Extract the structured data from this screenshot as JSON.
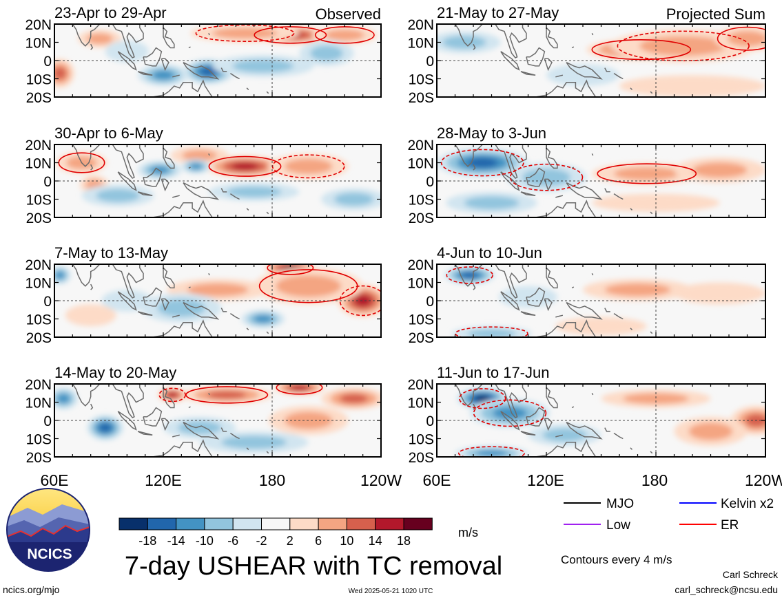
{
  "chart_data": {
    "type": "heatmap",
    "title": "7-day USHEAR with TC removal",
    "variable": "USHEAR",
    "units": "m/s",
    "colorbar": {
      "ticks": [
        "-18",
        "-14",
        "-10",
        "-6",
        "-2",
        "2",
        "6",
        "10",
        "14",
        "18"
      ],
      "colors": [
        "#08306b",
        "#2166ac",
        "#4393c3",
        "#92c5de",
        "#d1e5f0",
        "#f7f7f7",
        "#fddbc7",
        "#f4a582",
        "#d6604d",
        "#b2182b",
        "#67001f"
      ]
    },
    "lat_ticks": [
      "20N",
      "10N",
      "0",
      "10S",
      "20S"
    ],
    "lon_ticks": [
      "60E",
      "120E",
      "180",
      "120W"
    ],
    "panels": [
      {
        "title": "23-Apr to 29-Apr",
        "corner": "Observed",
        "column": "observed",
        "blobs": [
          {
            "lon": 190,
            "lat": 14,
            "rlon": 22,
            "rlat": 5,
            "v": 16
          },
          {
            "lon": 165,
            "lat": 15,
            "rlon": 30,
            "rlat": 5,
            "v": 8
          },
          {
            "lon": 220,
            "lat": 14,
            "rlon": 18,
            "rlat": 5,
            "v": 8
          },
          {
            "lon": 63,
            "lat": -7,
            "rlon": 8,
            "rlat": 8,
            "v": 12
          },
          {
            "lon": 85,
            "lat": 12,
            "rlon": 12,
            "rlat": 5,
            "v": 6
          },
          {
            "lon": 145,
            "lat": -6,
            "rlon": 14,
            "rlat": 7,
            "v": -14
          },
          {
            "lon": 120,
            "lat": -8,
            "rlon": 14,
            "rlat": 6,
            "v": -10
          },
          {
            "lon": 175,
            "lat": -3,
            "rlon": 28,
            "rlat": 6,
            "v": -8
          },
          {
            "lon": 210,
            "lat": 4,
            "rlon": 15,
            "rlat": 7,
            "v": -6
          },
          {
            "lon": 100,
            "lat": 5,
            "rlon": 12,
            "rlat": 6,
            "v": -4
          }
        ]
      },
      {
        "title": "30-Apr to 6-May",
        "corner": "",
        "column": "observed",
        "blobs": [
          {
            "lon": 165,
            "lat": 8,
            "rlon": 22,
            "rlat": 6,
            "v": 16
          },
          {
            "lon": 200,
            "lat": 8,
            "rlon": 22,
            "rlat": 7,
            "v": 8
          },
          {
            "lon": 75,
            "lat": 10,
            "rlon": 14,
            "rlat": 6,
            "v": 8
          },
          {
            "lon": 82,
            "lat": -2,
            "rlon": 8,
            "rlat": 5,
            "v": 8
          },
          {
            "lon": 140,
            "lat": 14,
            "rlon": 16,
            "rlat": 5,
            "v": 6
          },
          {
            "lon": 118,
            "lat": 6,
            "rlon": 12,
            "rlat": 5,
            "v": -12
          },
          {
            "lon": 138,
            "lat": 8,
            "rlon": 8,
            "rlat": 4,
            "v": -12
          },
          {
            "lon": 95,
            "lat": -8,
            "rlon": 20,
            "rlat": 6,
            "v": -6
          },
          {
            "lon": 170,
            "lat": -6,
            "rlon": 25,
            "rlat": 5,
            "v": -6
          },
          {
            "lon": 225,
            "lat": -10,
            "rlon": 18,
            "rlat": 6,
            "v": -6
          }
        ]
      },
      {
        "title": "7-May to 13-May",
        "corner": "",
        "column": "observed",
        "blobs": [
          {
            "lon": 190,
            "lat": 18,
            "rlon": 14,
            "rlat": 4,
            "v": 18
          },
          {
            "lon": 230,
            "lat": 0,
            "rlon": 14,
            "rlat": 9,
            "v": 16
          },
          {
            "lon": 200,
            "lat": 8,
            "rlon": 30,
            "rlat": 10,
            "v": 8
          },
          {
            "lon": 150,
            "lat": 6,
            "rlon": 28,
            "rlat": 6,
            "v": 6
          },
          {
            "lon": 63,
            "lat": 14,
            "rlon": 6,
            "rlat": 5,
            "v": -10
          },
          {
            "lon": 175,
            "lat": -10,
            "rlon": 12,
            "rlat": 5,
            "v": -12
          },
          {
            "lon": 130,
            "lat": -4,
            "rlon": 22,
            "rlat": 8,
            "v": -6
          },
          {
            "lon": 100,
            "lat": 0,
            "rlon": 14,
            "rlat": 6,
            "v": -4
          },
          {
            "lon": 80,
            "lat": -8,
            "rlon": 14,
            "rlat": 6,
            "v": 4
          }
        ]
      },
      {
        "title": "14-May to 20-May",
        "corner": "",
        "column": "observed",
        "blobs": [
          {
            "lon": 155,
            "lat": 14,
            "rlon": 25,
            "rlat": 5,
            "v": 12
          },
          {
            "lon": 125,
            "lat": 14,
            "rlon": 8,
            "rlat": 4,
            "v": 14
          },
          {
            "lon": 195,
            "lat": 18,
            "rlon": 14,
            "rlat": 4,
            "v": 16
          },
          {
            "lon": 225,
            "lat": 12,
            "rlon": 18,
            "rlat": 6,
            "v": 10
          },
          {
            "lon": 200,
            "lat": 0,
            "rlon": 22,
            "rlat": 8,
            "v": 8
          },
          {
            "lon": 65,
            "lat": 12,
            "rlon": 8,
            "rlat": 6,
            "v": -10
          },
          {
            "lon": 88,
            "lat": -4,
            "rlon": 10,
            "rlat": 7,
            "v": -14
          },
          {
            "lon": 140,
            "lat": -4,
            "rlon": 20,
            "rlat": 6,
            "v": -6
          },
          {
            "lon": 170,
            "lat": -12,
            "rlon": 30,
            "rlat": 6,
            "v": -6
          }
        ]
      },
      {
        "title": "21-May to 27-May",
        "corner": "Projected Sum",
        "column": "projected",
        "blobs": [
          {
            "lon": 172,
            "lat": 6,
            "rlon": 30,
            "rlat": 6,
            "v": 16
          },
          {
            "lon": 195,
            "lat": 8,
            "rlon": 40,
            "rlat": 9,
            "v": 8
          },
          {
            "lon": 230,
            "lat": 12,
            "rlon": 18,
            "rlat": 7,
            "v": 8
          },
          {
            "lon": 75,
            "lat": 10,
            "rlon": 20,
            "rlat": 6,
            "v": -6
          },
          {
            "lon": 140,
            "lat": -8,
            "rlon": 20,
            "rlat": 6,
            "v": -2
          },
          {
            "lon": 200,
            "lat": -14,
            "rlon": 40,
            "rlat": 6,
            "v": 4
          }
        ]
      },
      {
        "title": "28-May to 3-Jun",
        "corner": "",
        "column": "projected",
        "blobs": [
          {
            "lon": 85,
            "lat": 10,
            "rlon": 25,
            "rlat": 8,
            "v": -14
          },
          {
            "lon": 120,
            "lat": 2,
            "rlon": 22,
            "rlat": 8,
            "v": -8
          },
          {
            "lon": 90,
            "lat": -12,
            "rlon": 25,
            "rlat": 6,
            "v": -6
          },
          {
            "lon": 175,
            "lat": 4,
            "rlon": 30,
            "rlat": 6,
            "v": 8
          },
          {
            "lon": 215,
            "lat": 6,
            "rlon": 25,
            "rlat": 7,
            "v": 6
          },
          {
            "lon": 180,
            "lat": -12,
            "rlon": 35,
            "rlat": 5,
            "v": 4
          }
        ]
      },
      {
        "title": "4-Jun to 10-Jun",
        "corner": "",
        "column": "projected",
        "blobs": [
          {
            "lon": 78,
            "lat": 14,
            "rlon": 14,
            "rlat": 5,
            "v": -14
          },
          {
            "lon": 90,
            "lat": -18,
            "rlon": 22,
            "rlat": 4,
            "v": -8
          },
          {
            "lon": 110,
            "lat": 2,
            "rlon": 16,
            "rlat": 6,
            "v": -4
          },
          {
            "lon": 170,
            "lat": 6,
            "rlon": 30,
            "rlat": 6,
            "v": 6
          },
          {
            "lon": 215,
            "lat": 4,
            "rlon": 25,
            "rlat": 6,
            "v": 4
          },
          {
            "lon": 150,
            "lat": -14,
            "rlon": 25,
            "rlat": 5,
            "v": 4
          }
        ]
      },
      {
        "title": "11-Jun to 17-Jun",
        "corner": "",
        "column": "projected",
        "blobs": [
          {
            "lon": 85,
            "lat": 12,
            "rlon": 14,
            "rlat": 6,
            "v": -18
          },
          {
            "lon": 100,
            "lat": 4,
            "rlon": 22,
            "rlat": 8,
            "v": -10
          },
          {
            "lon": 90,
            "lat": -18,
            "rlon": 20,
            "rlat": 4,
            "v": -10
          },
          {
            "lon": 130,
            "lat": -8,
            "rlon": 20,
            "rlat": 6,
            "v": -6
          },
          {
            "lon": 180,
            "lat": 12,
            "rlon": 30,
            "rlat": 5,
            "v": 6
          },
          {
            "lon": 235,
            "lat": 0,
            "rlon": 14,
            "rlat": 8,
            "v": 12
          },
          {
            "lon": 210,
            "lat": -6,
            "rlon": 20,
            "rlat": 8,
            "v": 6
          }
        ]
      }
    ]
  },
  "units_label": "m/s",
  "main_title": "7-day USHEAR with TC removal",
  "legend": {
    "items": [
      {
        "label": "MJO",
        "color": "#000000"
      },
      {
        "label": "Kelvin x2",
        "color": "#0000ff"
      },
      {
        "label": "Low",
        "color": "#a020f0"
      },
      {
        "label": "ER",
        "color": "#ff0000"
      }
    ],
    "contour_note": "Contours every 4 m/s"
  },
  "logo_text": "NCICS",
  "footer": {
    "left": "ncics.org/mjo",
    "center": "Wed 2025-05-21 1020 UTC",
    "right_name": "Carl Schreck",
    "right_email": "carl_schreck@ncsu.edu"
  }
}
